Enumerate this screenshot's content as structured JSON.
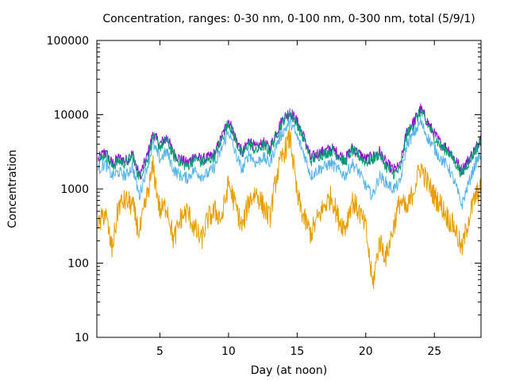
{
  "chart_data": {
    "type": "line",
    "title": "Concentration, ranges: 0-30 nm, 0-100 nm, 0-300 nm, total (5/9/1)",
    "xlabel": "Day (at noon)",
    "ylabel": "Concentration",
    "xlim": [
      0.4,
      28.4
    ],
    "ylim": [
      10,
      100000
    ],
    "yscale": "log",
    "grid": false,
    "legend": "none",
    "xticks": [
      5,
      10,
      15,
      20,
      25
    ],
    "xtick_labels": [
      "5",
      "10",
      "15",
      "20",
      "25"
    ],
    "yticks": [
      10,
      100,
      1000,
      10000,
      100000
    ],
    "ytick_labels": [
      "10",
      "100",
      "1000",
      "10000",
      "100000"
    ],
    "series": [
      {
        "color": "#9400d3",
        "x": [
          0.5,
          1.0,
          1.5,
          2.0,
          2.5,
          3.0,
          3.5,
          4.0,
          4.5,
          5.0,
          5.5,
          6.0,
          6.5,
          7.0,
          7.5,
          8.0,
          8.5,
          9.0,
          9.5,
          10.0,
          10.5,
          11.0,
          11.5,
          12.0,
          12.5,
          13.0,
          13.5,
          14.0,
          14.5,
          15.0,
          15.5,
          16.0,
          16.5,
          17.0,
          17.5,
          18.0,
          18.5,
          19.0,
          19.5,
          20.0,
          20.5,
          21.0,
          21.5,
          22.0,
          22.5,
          23.0,
          23.5,
          24.0,
          24.5,
          25.0,
          25.5,
          26.0,
          26.5,
          27.0,
          27.5,
          28.0,
          28.4
        ],
        "y": [
          2500,
          3200,
          2200,
          2600,
          2400,
          3000,
          1500,
          2500,
          5500,
          4000,
          5000,
          3000,
          2500,
          2200,
          2800,
          2500,
          2600,
          3000,
          5000,
          8500,
          5000,
          3000,
          4500,
          3500,
          4200,
          3500,
          6000,
          9000,
          11000,
          8000,
          5000,
          2600,
          3000,
          3200,
          3500,
          3000,
          2500,
          3500,
          3000,
          2500,
          2700,
          3200,
          2200,
          1800,
          2000,
          6000,
          8000,
          12000,
          8000,
          5500,
          4000,
          3500,
          2500,
          1800,
          2500,
          3500,
          5000
        ]
      },
      {
        "color": "#009e73",
        "x": [
          0.5,
          1.0,
          1.5,
          2.0,
          2.5,
          3.0,
          3.5,
          4.0,
          4.5,
          5.0,
          5.5,
          6.0,
          6.5,
          7.0,
          7.5,
          8.0,
          8.5,
          9.0,
          9.5,
          10.0,
          10.5,
          11.0,
          11.5,
          12.0,
          12.5,
          13.0,
          13.5,
          14.0,
          14.5,
          15.0,
          15.5,
          16.0,
          16.5,
          17.0,
          17.5,
          18.0,
          18.5,
          19.0,
          19.5,
          20.0,
          20.5,
          21.0,
          21.5,
          22.0,
          22.5,
          23.0,
          23.5,
          24.0,
          24.5,
          25.0,
          25.5,
          26.0,
          26.5,
          27.0,
          27.5,
          28.0,
          28.4
        ],
        "y": [
          2300,
          3000,
          2000,
          2400,
          2200,
          2800,
          1400,
          2300,
          5000,
          3700,
          4600,
          2800,
          2300,
          2000,
          2600,
          2300,
          2400,
          2800,
          4600,
          8000,
          4600,
          2800,
          4200,
          3200,
          3900,
          3200,
          5500,
          8500,
          10500,
          7500,
          4600,
          2400,
          2800,
          3000,
          3300,
          2800,
          2300,
          3300,
          2800,
          2300,
          2500,
          3000,
          2000,
          1600,
          1800,
          5500,
          7500,
          11000,
          7500,
          5000,
          3700,
          3200,
          2300,
          1600,
          2300,
          3300,
          4600
        ]
      },
      {
        "color": "#56b4e9",
        "x": [
          0.5,
          1.0,
          1.5,
          2.0,
          2.5,
          3.0,
          3.5,
          4.0,
          4.5,
          5.0,
          5.5,
          6.0,
          6.5,
          7.0,
          7.5,
          8.0,
          8.5,
          9.0,
          9.5,
          10.0,
          10.5,
          11.0,
          11.5,
          12.0,
          12.5,
          13.0,
          13.5,
          14.0,
          14.5,
          15.0,
          15.5,
          16.0,
          16.5,
          17.0,
          17.5,
          18.0,
          18.5,
          19.0,
          19.5,
          20.0,
          20.5,
          21.0,
          21.5,
          22.0,
          22.5,
          23.0,
          23.5,
          24.0,
          24.5,
          25.0,
          25.5,
          26.0,
          26.5,
          27.0,
          27.5,
          28.0,
          28.4
        ],
        "y": [
          1800,
          2200,
          1500,
          1700,
          1500,
          2000,
          800,
          1800,
          4000,
          2500,
          3200,
          1800,
          1500,
          1400,
          1800,
          1500,
          1600,
          2000,
          3500,
          6000,
          3000,
          1800,
          3000,
          2200,
          2700,
          2200,
          4000,
          6000,
          8000,
          5000,
          3000,
          1500,
          1800,
          2000,
          2200,
          1800,
          1500,
          2200,
          1700,
          1100,
          800,
          1500,
          1200,
          1000,
          1200,
          4000,
          5500,
          8000,
          5000,
          3500,
          2500,
          2000,
          1200,
          600,
          1200,
          2200,
          3000
        ]
      },
      {
        "color": "#e69f00",
        "x": [
          0.5,
          1.0,
          1.5,
          2.0,
          2.5,
          3.0,
          3.5,
          4.0,
          4.5,
          5.0,
          5.5,
          6.0,
          6.5,
          7.0,
          7.5,
          8.0,
          8.5,
          9.0,
          9.5,
          10.0,
          10.5,
          11.0,
          11.5,
          12.0,
          12.5,
          13.0,
          13.5,
          14.0,
          14.5,
          15.0,
          15.5,
          16.0,
          16.5,
          17.0,
          17.5,
          18.0,
          18.5,
          19.0,
          19.5,
          20.0,
          20.5,
          21.0,
          21.5,
          22.0,
          22.5,
          23.0,
          23.5,
          24.0,
          24.5,
          25.0,
          25.5,
          26.0,
          26.5,
          27.0,
          27.5,
          28.0,
          28.4
        ],
        "y": [
          300,
          500,
          150,
          600,
          700,
          600,
          250,
          700,
          2000,
          500,
          600,
          200,
          400,
          500,
          300,
          200,
          400,
          500,
          400,
          1200,
          600,
          300,
          700,
          900,
          600,
          400,
          1500,
          3000,
          5000,
          800,
          400,
          250,
          400,
          600,
          800,
          400,
          300,
          700,
          500,
          300,
          50,
          200,
          120,
          300,
          700,
          500,
          1000,
          2000,
          1200,
          800,
          600,
          400,
          300,
          150,
          400,
          800,
          1000
        ]
      }
    ]
  }
}
